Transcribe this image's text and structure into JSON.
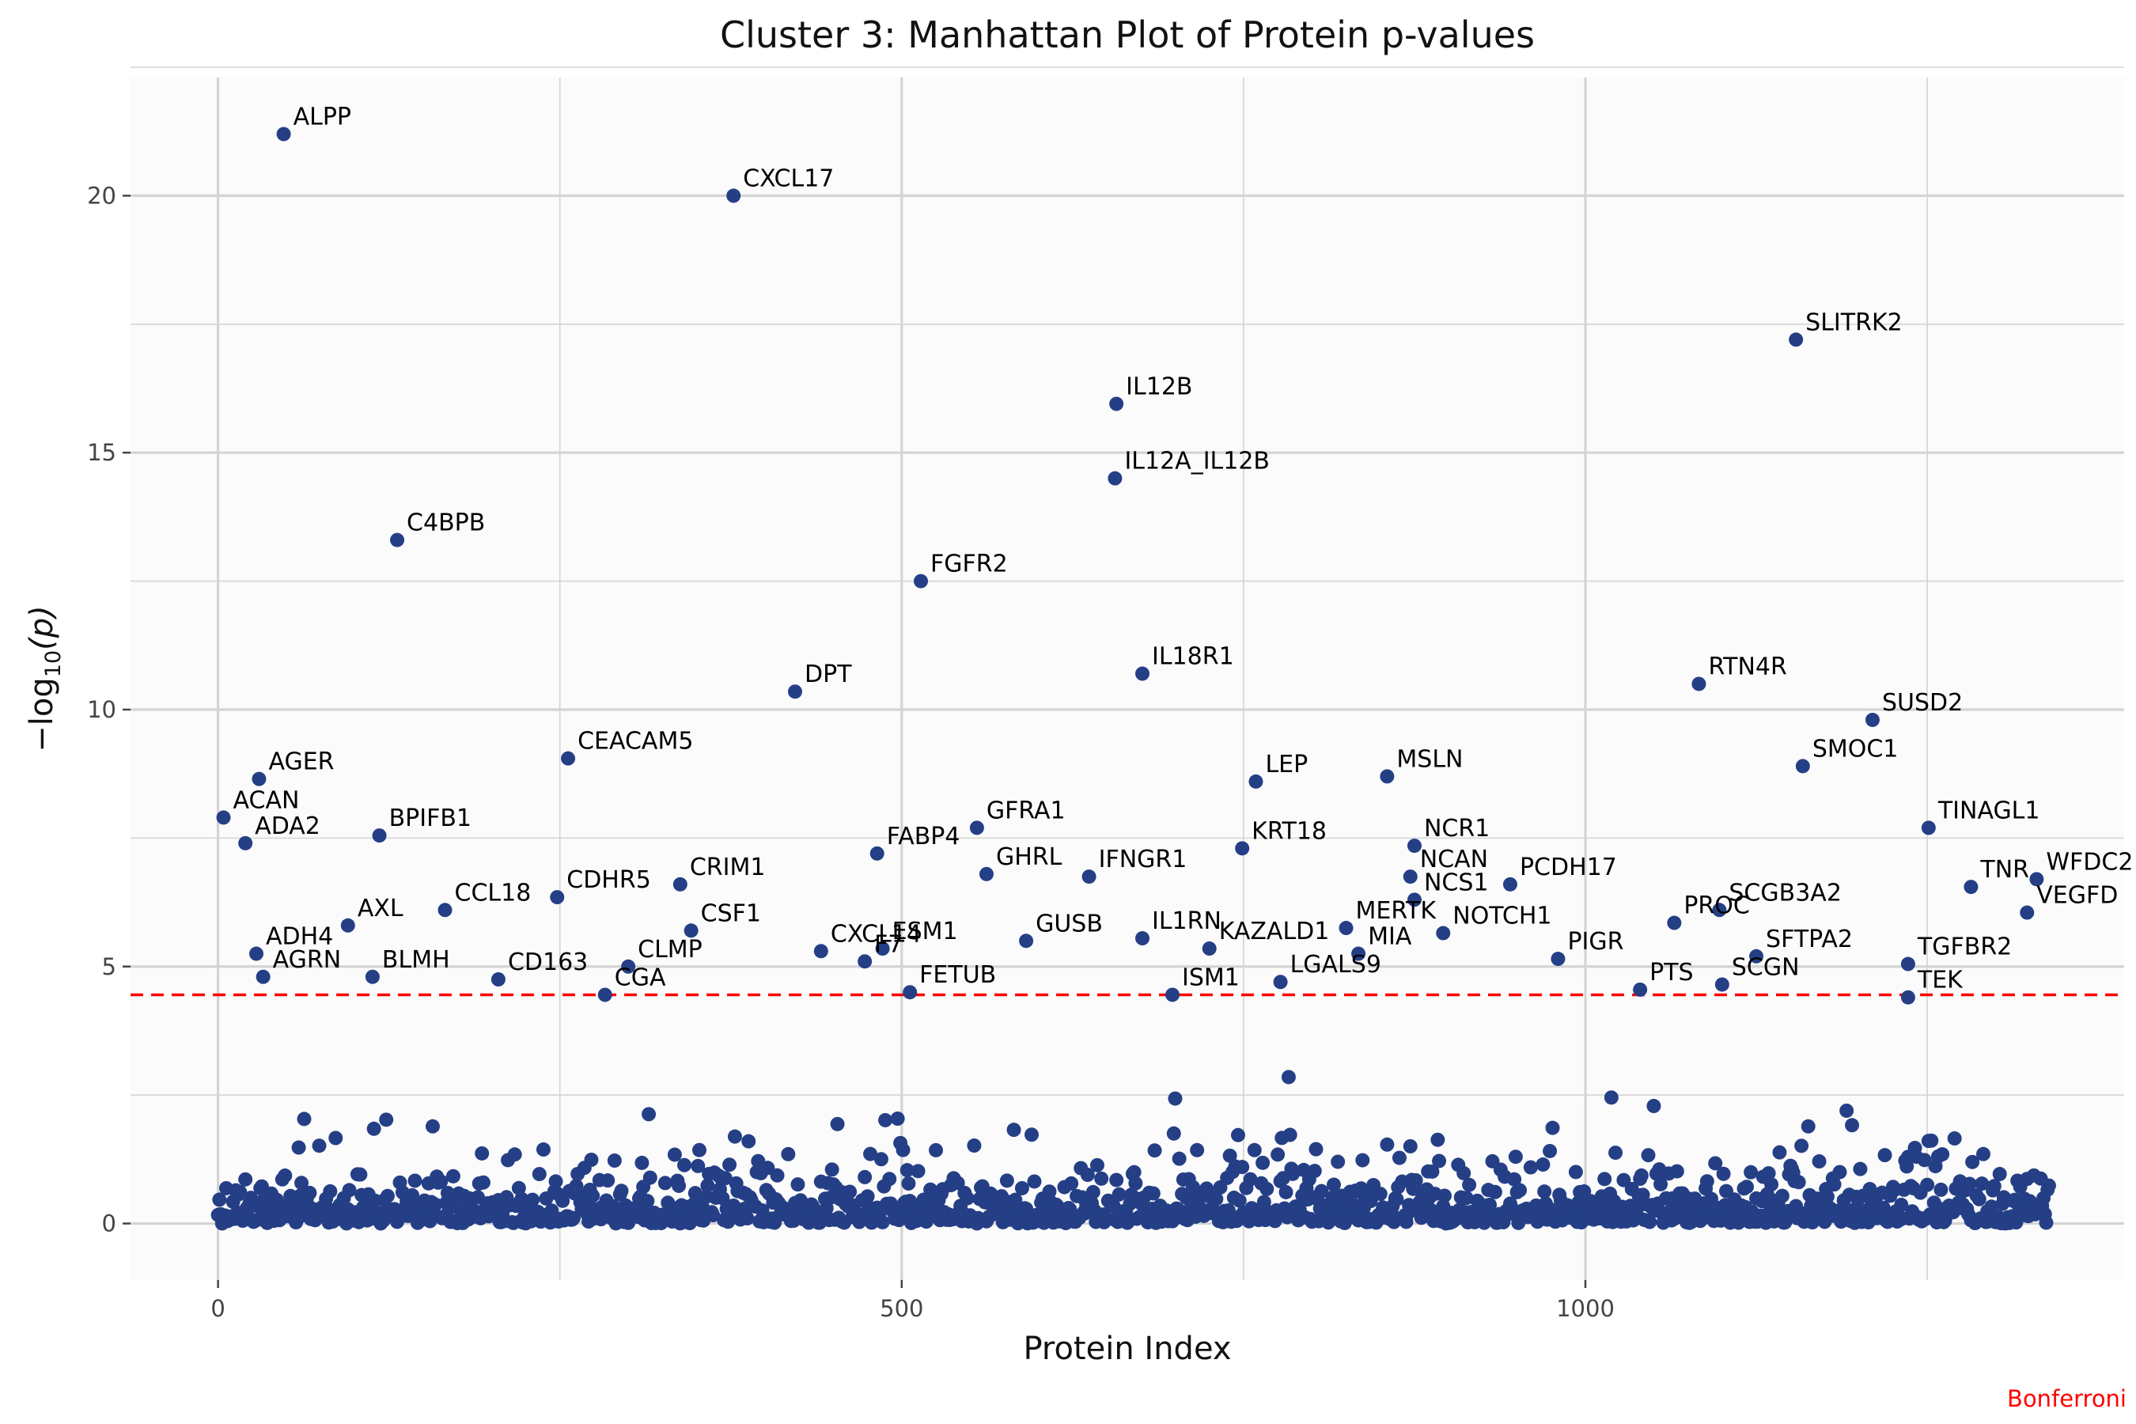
{
  "chart_data": {
    "type": "scatter",
    "title": "Cluster 3: Manhattan Plot of Protein p-values",
    "xlabel": "Protein Index",
    "ylabel": "−log",
    "ylabel_subscript": "10",
    "ylabel_suffix": "(p)",
    "caption": "Bonferroni",
    "xlim": [
      -64,
      1394
    ],
    "ylim": [
      -1.1,
      22.3
    ],
    "x_ticks": [
      0,
      500,
      1000
    ],
    "y_ticks": [
      0,
      5,
      10,
      15,
      20
    ],
    "grid": true,
    "threshold": 4.45,
    "colors": {
      "points": "#253f86",
      "threshold": "#ff0000",
      "panel": "#fbfbfb",
      "grid": "#d4d4d4"
    },
    "labeled_points": [
      {
        "label": "ALPP",
        "x": 48,
        "y": 21.2
      },
      {
        "label": "CXCL17",
        "x": 377,
        "y": 20.0
      },
      {
        "label": "SLITRK2",
        "x": 1154,
        "y": 17.2
      },
      {
        "label": "IL12B",
        "x": 657,
        "y": 15.95
      },
      {
        "label": "IL12A_IL12B",
        "x": 656,
        "y": 14.5
      },
      {
        "label": "C4BPB",
        "x": 131,
        "y": 13.3
      },
      {
        "label": "FGFR2",
        "x": 514,
        "y": 12.5
      },
      {
        "label": "IL18R1",
        "x": 676,
        "y": 10.7
      },
      {
        "label": "RTN4R",
        "x": 1083,
        "y": 10.5
      },
      {
        "label": "DPT",
        "x": 422,
        "y": 10.35
      },
      {
        "label": "SUSD2",
        "x": 1210,
        "y": 9.8
      },
      {
        "label": "CEACAM5",
        "x": 256,
        "y": 9.05
      },
      {
        "label": "SMOC1",
        "x": 1159,
        "y": 8.9
      },
      {
        "label": "MSLN",
        "x": 855,
        "y": 8.7
      },
      {
        "label": "AGER",
        "x": 30,
        "y": 8.65
      },
      {
        "label": "LEP",
        "x": 759,
        "y": 8.6
      },
      {
        "label": "ACAN",
        "x": 4,
        "y": 7.9
      },
      {
        "label": "GFRA1",
        "x": 555,
        "y": 7.7
      },
      {
        "label": "TINAGL1",
        "x": 1251,
        "y": 7.7
      },
      {
        "label": "BPIFB1",
        "x": 118,
        "y": 7.55
      },
      {
        "label": "ADA2",
        "x": 20,
        "y": 7.4
      },
      {
        "label": "KRT18",
        "x": 749,
        "y": 7.3
      },
      {
        "label": "NCR1",
        "x": 875,
        "y": 7.35
      },
      {
        "label": "FABP4",
        "x": 482,
        "y": 7.2
      },
      {
        "label": "CRIM1",
        "x": 338,
        "y": 6.6
      },
      {
        "label": "CDHR5",
        "x": 248,
        "y": 6.35
      },
      {
        "label": "GHRL",
        "x": 562,
        "y": 6.8
      },
      {
        "label": "IFNGR1",
        "x": 637,
        "y": 6.75
      },
      {
        "label": "NCAN",
        "x": 872,
        "y": 6.75
      },
      {
        "label": "PCDH17",
        "x": 945,
        "y": 6.6
      },
      {
        "label": "NCS1",
        "x": 875,
        "y": 6.3
      },
      {
        "label": "TNR",
        "x": 1282,
        "y": 6.55
      },
      {
        "label": "WFDC2",
        "x": 1330,
        "y": 6.7
      },
      {
        "label": "SCGB3A2",
        "x": 1098,
        "y": 6.1
      },
      {
        "label": "VEGFD",
        "x": 1323,
        "y": 6.05
      },
      {
        "label": "CCL18",
        "x": 166,
        "y": 6.1
      },
      {
        "label": "AXL",
        "x": 95,
        "y": 5.8
      },
      {
        "label": "CSF1",
        "x": 346,
        "y": 5.7
      },
      {
        "label": "MERTK",
        "x": 825,
        "y": 5.75
      },
      {
        "label": "NOTCH1",
        "x": 896,
        "y": 5.65
      },
      {
        "label": "PROC",
        "x": 1065,
        "y": 5.85
      },
      {
        "label": "ADH4",
        "x": 28,
        "y": 5.25
      },
      {
        "label": "GUSB",
        "x": 591,
        "y": 5.5
      },
      {
        "label": "IL1RN",
        "x": 676,
        "y": 5.55
      },
      {
        "label": "SFTPA2",
        "x": 1125,
        "y": 5.2
      },
      {
        "label": "AGRN",
        "x": 33,
        "y": 4.8
      },
      {
        "label": "BLMH",
        "x": 113,
        "y": 4.8
      },
      {
        "label": "CXCL14",
        "x": 441,
        "y": 5.3
      },
      {
        "label": "ESM1",
        "x": 486,
        "y": 5.35
      },
      {
        "label": "KAZALD1",
        "x": 725,
        "y": 5.35
      },
      {
        "label": "MIA",
        "x": 834,
        "y": 5.25
      },
      {
        "label": "PIGR",
        "x": 980,
        "y": 5.15
      },
      {
        "label": "TGFBR2",
        "x": 1236,
        "y": 5.05
      },
      {
        "label": "CD163",
        "x": 205,
        "y": 4.75
      },
      {
        "label": "CLMP",
        "x": 300,
        "y": 5.0
      },
      {
        "label": "CGA",
        "x": 283,
        "y": 4.45
      },
      {
        "label": "F7",
        "x": 473,
        "y": 5.1
      },
      {
        "label": "FETUB",
        "x": 506,
        "y": 4.5
      },
      {
        "label": "ISM1",
        "x": 698,
        "y": 4.45
      },
      {
        "label": "LGALS9",
        "x": 777,
        "y": 4.7
      },
      {
        "label": "PTS",
        "x": 1040,
        "y": 4.55
      },
      {
        "label": "SCGN",
        "x": 1100,
        "y": 4.65
      },
      {
        "label": "TEK",
        "x": 1236,
        "y": 4.4
      }
    ]
  }
}
